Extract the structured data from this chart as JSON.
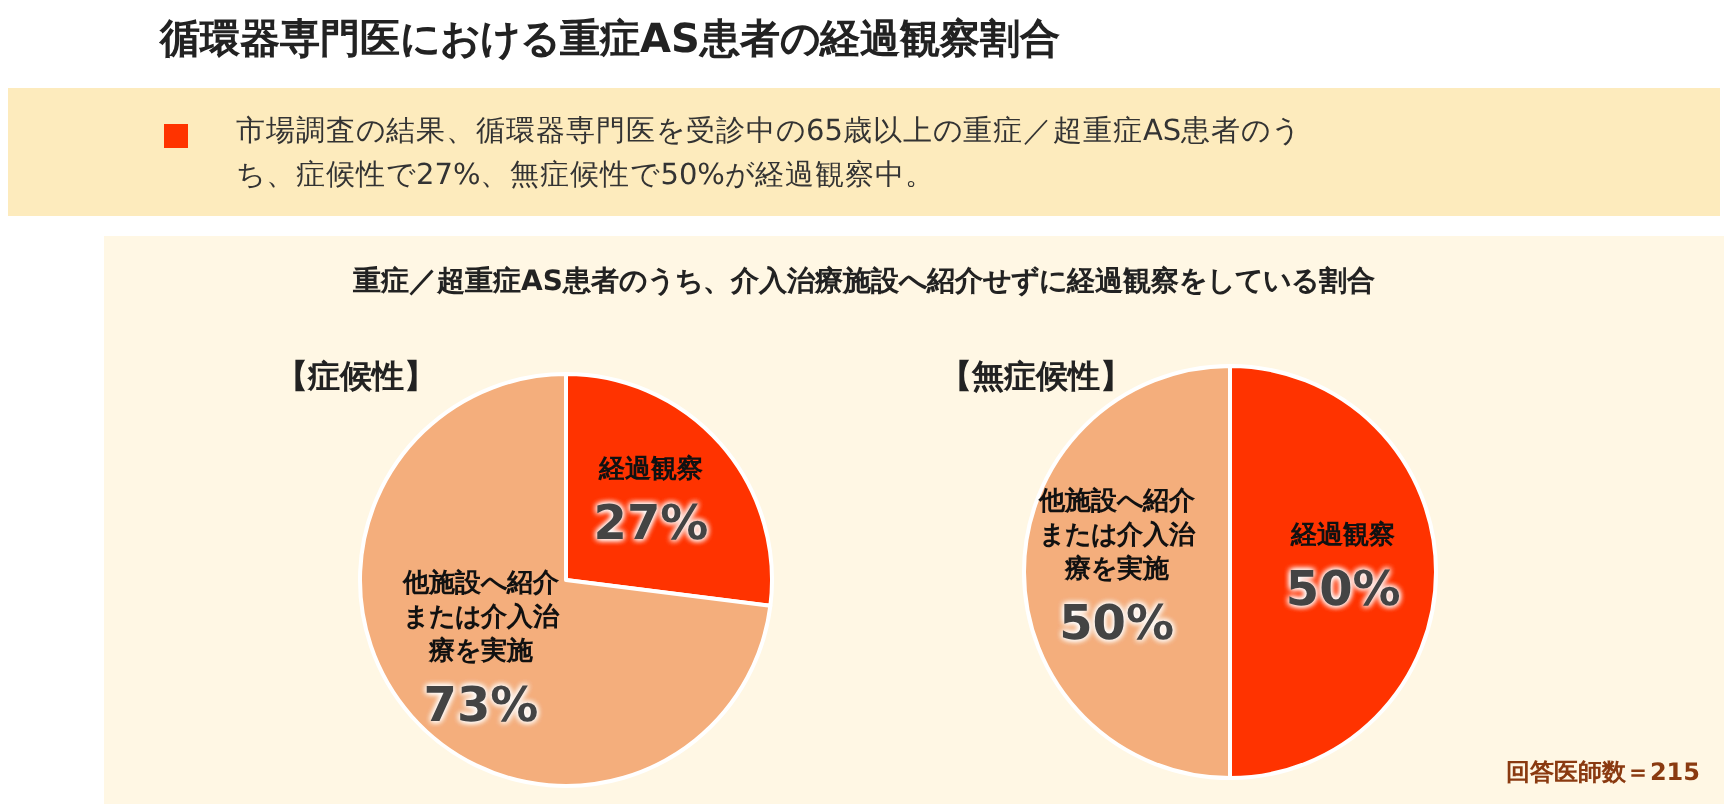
{
  "chart_data": [
    {
      "type": "other",
      "title": "循環器専門医における重症AS患者の経過観察割合",
      "annotations": [
        "市場調査の結果、循環器専門医を受診中の65歳以上の重症／超重症AS患者のうち、症候性で27%、無症候性で50%が経過観察中。",
        "重症／超重症AS患者のうち、介入治療施設へ紹介せずに経過観察をしている割合",
        "回答医師数＝215"
      ]
    },
    {
      "type": "pie",
      "title": "【症候性】",
      "categories": [
        "経過観察",
        "他施設へ紹介または介入治療を実施"
      ],
      "values": [
        27,
        73
      ],
      "colors": [
        "#ff3300",
        "#f4ae7c"
      ],
      "value_labels": [
        "27%",
        "73%"
      ]
    },
    {
      "type": "pie",
      "title": "【無症候性】",
      "categories": [
        "経過観察",
        "他施設へ紹介または介入治療を実施"
      ],
      "values": [
        50,
        50
      ],
      "colors": [
        "#ff3300",
        "#f4ae7c"
      ],
      "value_labels": [
        "50%",
        "50%"
      ]
    }
  ]
}
